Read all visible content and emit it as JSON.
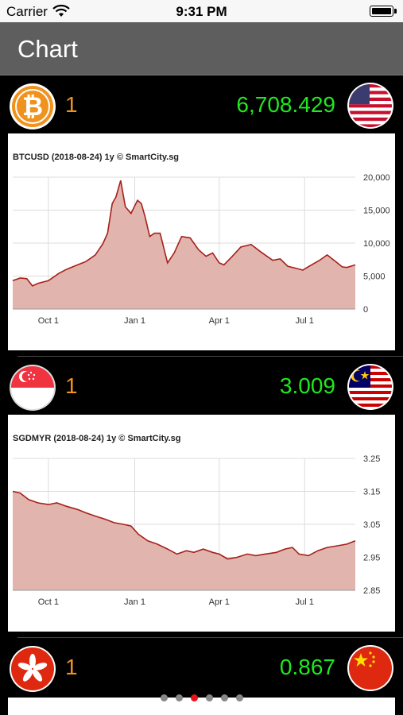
{
  "status": {
    "carrier": "Carrier",
    "time": "9:31 PM"
  },
  "nav": {
    "title": "Chart"
  },
  "rows": [
    {
      "amount": "1",
      "rate": "6,708.429",
      "from": "bitcoin-icon",
      "to": "us-flag-icon"
    },
    {
      "amount": "1",
      "rate": "3.009",
      "from": "singapore-flag-icon",
      "to": "malaysia-flag-icon"
    },
    {
      "amount": "1",
      "rate": "0.867",
      "from": "hong-kong-flag-icon",
      "to": "china-flag-icon"
    }
  ],
  "pagination": {
    "count": 6,
    "active": 2
  },
  "colors": {
    "rate": "#1ee81e",
    "amount": "#f0921e",
    "line": "#a52019",
    "fill": "#e2b4ae",
    "dot_active": "#e8141a"
  },
  "chart_data": [
    {
      "type": "area",
      "title": "BTCUSD (2018-08-24) 1y  © SmartCity.sg",
      "x_ticks": [
        "Oct 1",
        "Jan 1",
        "Apr 1",
        "Jul 1"
      ],
      "y_ticks": [
        "20,000",
        "15,000",
        "10,000",
        "5,000",
        "0"
      ],
      "ylim": [
        0,
        20000
      ],
      "xlim": [
        "2017-08-24",
        "2018-08-24"
      ],
      "grid": true,
      "points": [
        [
          "2017-08-24",
          4300
        ],
        [
          "2017-09-01",
          4700
        ],
        [
          "2017-09-08",
          4600
        ],
        [
          "2017-09-14",
          3500
        ],
        [
          "2017-09-20",
          3900
        ],
        [
          "2017-10-01",
          4300
        ],
        [
          "2017-10-12",
          5400
        ],
        [
          "2017-10-20",
          6000
        ],
        [
          "2017-11-01",
          6700
        ],
        [
          "2017-11-10",
          7200
        ],
        [
          "2017-11-20",
          8200
        ],
        [
          "2017-11-28",
          9900
        ],
        [
          "2017-12-03",
          11500
        ],
        [
          "2017-12-08",
          16000
        ],
        [
          "2017-12-12",
          17000
        ],
        [
          "2017-12-17",
          19500
        ],
        [
          "2017-12-22",
          15500
        ],
        [
          "2017-12-28",
          14500
        ],
        [
          "2018-01-04",
          16500
        ],
        [
          "2018-01-08",
          16000
        ],
        [
          "2018-01-12",
          14000
        ],
        [
          "2018-01-17",
          11000
        ],
        [
          "2018-01-22",
          11500
        ],
        [
          "2018-01-28",
          11500
        ],
        [
          "2018-02-05",
          7000
        ],
        [
          "2018-02-12",
          8500
        ],
        [
          "2018-02-20",
          11000
        ],
        [
          "2018-03-01",
          10800
        ],
        [
          "2018-03-10",
          9000
        ],
        [
          "2018-03-18",
          8000
        ],
        [
          "2018-03-25",
          8500
        ],
        [
          "2018-04-01",
          7000
        ],
        [
          "2018-04-06",
          6700
        ],
        [
          "2018-04-15",
          8000
        ],
        [
          "2018-04-24",
          9400
        ],
        [
          "2018-05-05",
          9800
        ],
        [
          "2018-05-15",
          8700
        ],
        [
          "2018-05-28",
          7400
        ],
        [
          "2018-06-05",
          7600
        ],
        [
          "2018-06-13",
          6500
        ],
        [
          "2018-06-24",
          6100
        ],
        [
          "2018-06-29",
          5900
        ],
        [
          "2018-07-06",
          6500
        ],
        [
          "2018-07-17",
          7400
        ],
        [
          "2018-07-25",
          8200
        ],
        [
          "2018-08-04",
          7100
        ],
        [
          "2018-08-10",
          6400
        ],
        [
          "2018-08-15",
          6300
        ],
        [
          "2018-08-24",
          6700
        ]
      ]
    },
    {
      "type": "area",
      "title": "SGDMYR (2018-08-24) 1y  © SmartCity.sg",
      "x_ticks": [
        "Oct 1",
        "Jan 1",
        "Apr 1",
        "Jul 1"
      ],
      "y_ticks": [
        "3.25",
        "3.15",
        "3.05",
        "2.95",
        "2.85"
      ],
      "ylim": [
        2.85,
        3.25
      ],
      "xlim": [
        "2017-08-24",
        "2018-08-24"
      ],
      "grid": true,
      "points": [
        [
          "2017-08-24",
          3.15
        ],
        [
          "2017-09-01",
          3.145
        ],
        [
          "2017-09-10",
          3.125
        ],
        [
          "2017-09-20",
          3.115
        ],
        [
          "2017-10-01",
          3.11
        ],
        [
          "2017-10-10",
          3.115
        ],
        [
          "2017-10-20",
          3.105
        ],
        [
          "2017-11-01",
          3.095
        ],
        [
          "2017-11-10",
          3.085
        ],
        [
          "2017-11-20",
          3.075
        ],
        [
          "2017-12-01",
          3.065
        ],
        [
          "2017-12-10",
          3.055
        ],
        [
          "2017-12-20",
          3.05
        ],
        [
          "2017-12-28",
          3.045
        ],
        [
          "2018-01-05",
          3.02
        ],
        [
          "2018-01-15",
          3.0
        ],
        [
          "2018-01-25",
          2.99
        ],
        [
          "2018-02-05",
          2.975
        ],
        [
          "2018-02-15",
          2.96
        ],
        [
          "2018-02-25",
          2.97
        ],
        [
          "2018-03-05",
          2.965
        ],
        [
          "2018-03-15",
          2.975
        ],
        [
          "2018-03-25",
          2.965
        ],
        [
          "2018-04-01",
          2.96
        ],
        [
          "2018-04-10",
          2.945
        ],
        [
          "2018-04-20",
          2.95
        ],
        [
          "2018-05-01",
          2.96
        ],
        [
          "2018-05-10",
          2.955
        ],
        [
          "2018-05-20",
          2.96
        ],
        [
          "2018-06-01",
          2.965
        ],
        [
          "2018-06-10",
          2.975
        ],
        [
          "2018-06-18",
          2.98
        ],
        [
          "2018-06-25",
          2.96
        ],
        [
          "2018-07-05",
          2.955
        ],
        [
          "2018-07-15",
          2.97
        ],
        [
          "2018-07-25",
          2.98
        ],
        [
          "2018-08-05",
          2.985
        ],
        [
          "2018-08-15",
          2.99
        ],
        [
          "2018-08-24",
          3.0
        ]
      ]
    }
  ]
}
